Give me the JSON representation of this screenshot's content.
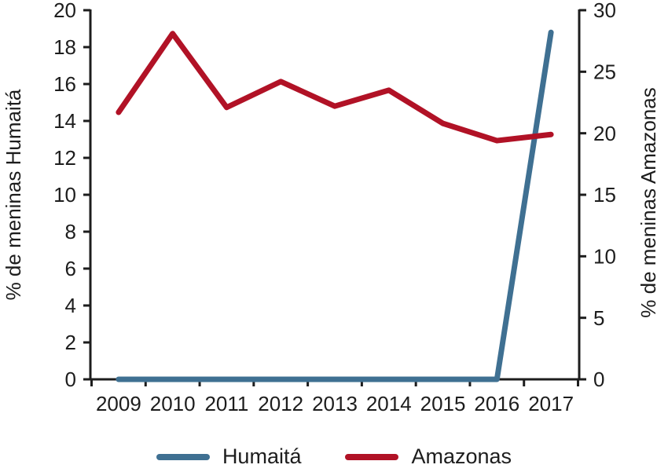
{
  "chart_data": {
    "type": "line",
    "x": [
      "2009",
      "2010",
      "2011",
      "2012",
      "2013",
      "2014",
      "2015",
      "2016",
      "2017"
    ],
    "series": [
      {
        "name": "Humaitá",
        "axis": "left",
        "color": "#3f7092",
        "values": [
          0,
          0,
          0,
          0,
          0,
          0,
          0,
          0,
          18.8
        ]
      },
      {
        "name": "Amazonas",
        "axis": "right",
        "color": "#b11226",
        "values": [
          21.7,
          28.1,
          22.1,
          24.2,
          22.2,
          23.5,
          20.8,
          19.4,
          19.9
        ]
      }
    ],
    "axes": {
      "left": {
        "label": "% de meninas Humaitá",
        "range": [
          0,
          20
        ],
        "ticks": [
          0,
          2,
          4,
          6,
          8,
          10,
          12,
          14,
          16,
          18,
          20
        ]
      },
      "right": {
        "label": "% de meninas Amazonas",
        "range": [
          0,
          30
        ],
        "ticks": [
          0,
          5,
          10,
          15,
          20,
          25,
          30
        ]
      }
    },
    "legend": {
      "position": "bottom",
      "items": [
        "Humaitá",
        "Amazonas"
      ]
    },
    "grid": false,
    "text_color": "#1d1d1d",
    "axis_color": "#1d1d1d"
  }
}
